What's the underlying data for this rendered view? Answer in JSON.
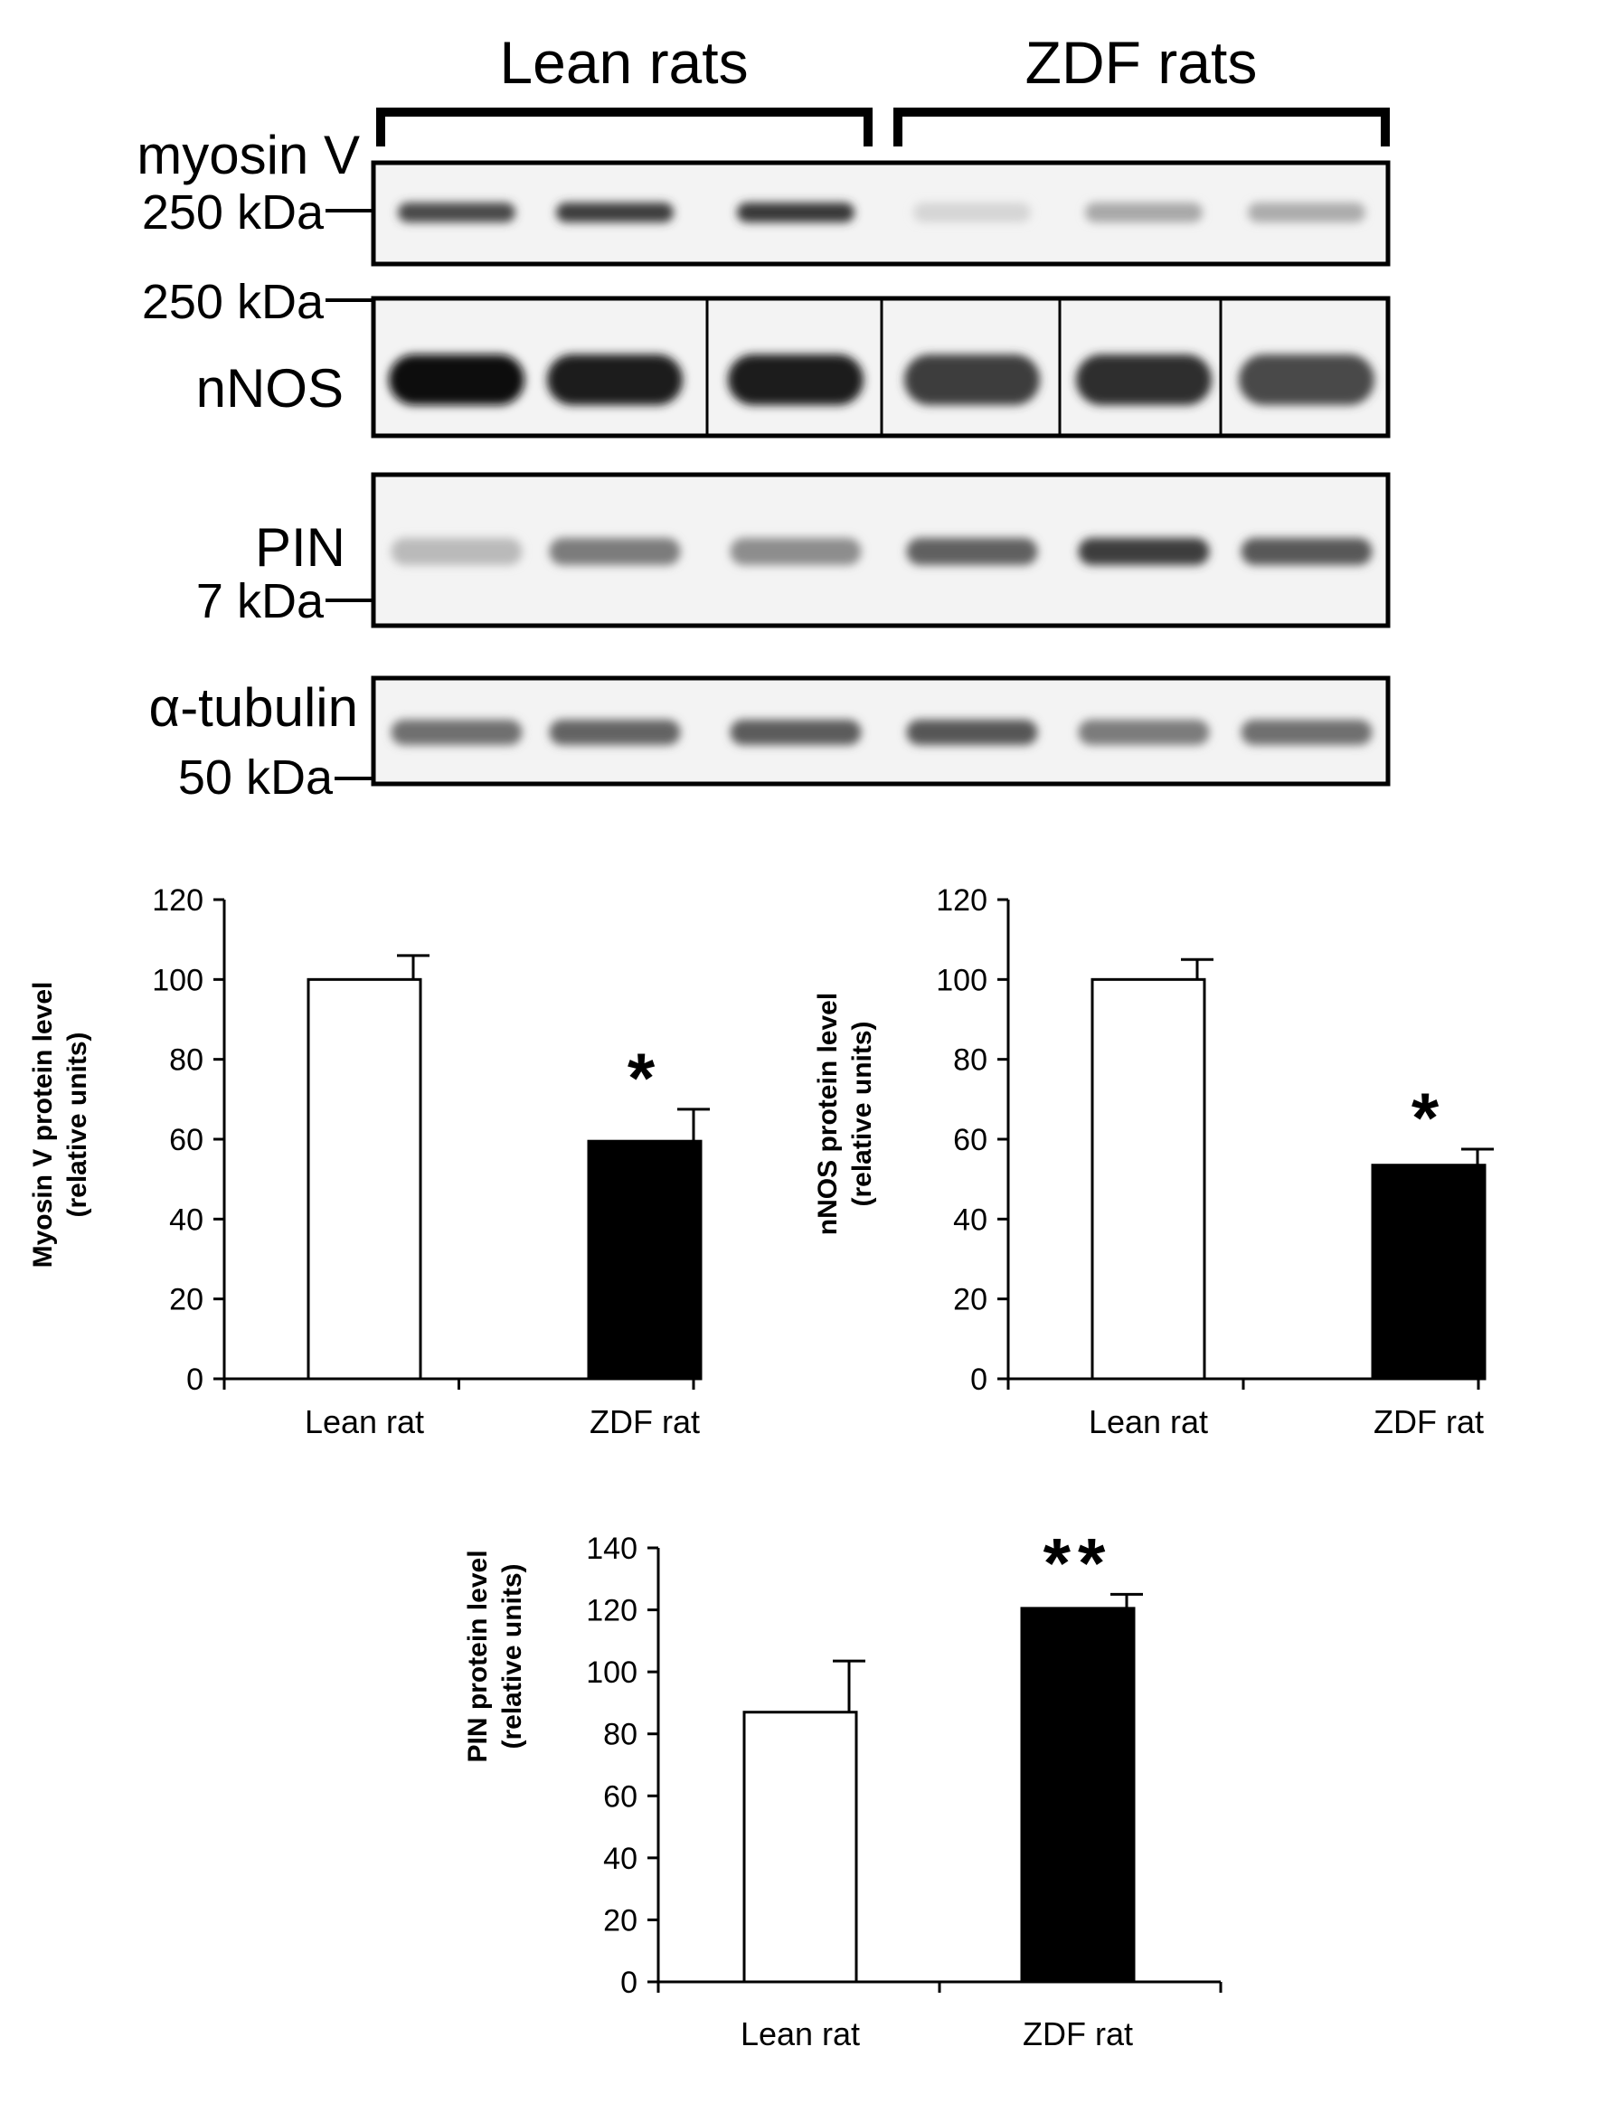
{
  "blot": {
    "groups": [
      "Lean rats",
      "ZDF rats"
    ],
    "panels": [
      {
        "protein": "myosin V",
        "marker": "250 kDa",
        "band_intensity": [
          0.72,
          0.78,
          0.8,
          0.1,
          0.3,
          0.28
        ]
      },
      {
        "protein": "nNOS",
        "marker": "250 kDa",
        "band_intensity": [
          1.0,
          0.92,
          0.92,
          0.78,
          0.84,
          0.72
        ]
      },
      {
        "protein": "PIN",
        "marker": "7 kDa",
        "band_intensity": [
          0.22,
          0.5,
          0.42,
          0.62,
          0.78,
          0.65
        ]
      },
      {
        "protein": "α-tubulin",
        "marker": "50 kDa",
        "band_intensity": [
          0.55,
          0.6,
          0.64,
          0.66,
          0.5,
          0.55
        ]
      }
    ]
  },
  "chart_data": [
    {
      "type": "bar",
      "categories": [
        "Lean rat",
        "ZDF rat"
      ],
      "values": [
        100,
        59.5
      ],
      "errors": [
        6,
        8
      ],
      "bar_colors": [
        "#ffffff",
        "#000000"
      ],
      "significance": [
        "",
        "*"
      ],
      "ylabel": [
        "Myosin V protein level",
        "(relative units)"
      ],
      "ylim": [
        0,
        120
      ],
      "yticks": [
        0,
        20,
        40,
        60,
        80,
        100,
        120
      ]
    },
    {
      "type": "bar",
      "categories": [
        "Lean rat",
        "ZDF rat"
      ],
      "values": [
        100,
        53.5
      ],
      "errors": [
        5,
        4
      ],
      "bar_colors": [
        "#ffffff",
        "#000000"
      ],
      "significance": [
        "",
        "*"
      ],
      "ylabel": [
        "nNOS protein level",
        "(relative units)"
      ],
      "ylim": [
        0,
        120
      ],
      "yticks": [
        0,
        20,
        40,
        60,
        80,
        100,
        120
      ]
    },
    {
      "type": "bar",
      "categories": [
        "Lean rat",
        "ZDF rat"
      ],
      "values": [
        87,
        120.5
      ],
      "errors": [
        16.5,
        4.5
      ],
      "bar_colors": [
        "#ffffff",
        "#000000"
      ],
      "significance": [
        "",
        "**"
      ],
      "ylabel": [
        "PIN protein level",
        "(relative units)"
      ],
      "ylim": [
        0,
        140
      ],
      "yticks": [
        0,
        20,
        40,
        60,
        80,
        100,
        120,
        140
      ]
    }
  ]
}
